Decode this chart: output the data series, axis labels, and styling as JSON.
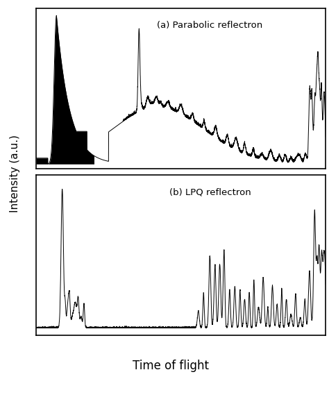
{
  "title_a": "(a) Parabolic reflectron",
  "title_b": "(b) LPQ reflectron",
  "xlabel": "Time of flight",
  "ylabel": "Intensity (a.u.)",
  "background_color": "#ffffff",
  "line_color": "#000000",
  "fig_width": 4.74,
  "fig_height": 5.82
}
